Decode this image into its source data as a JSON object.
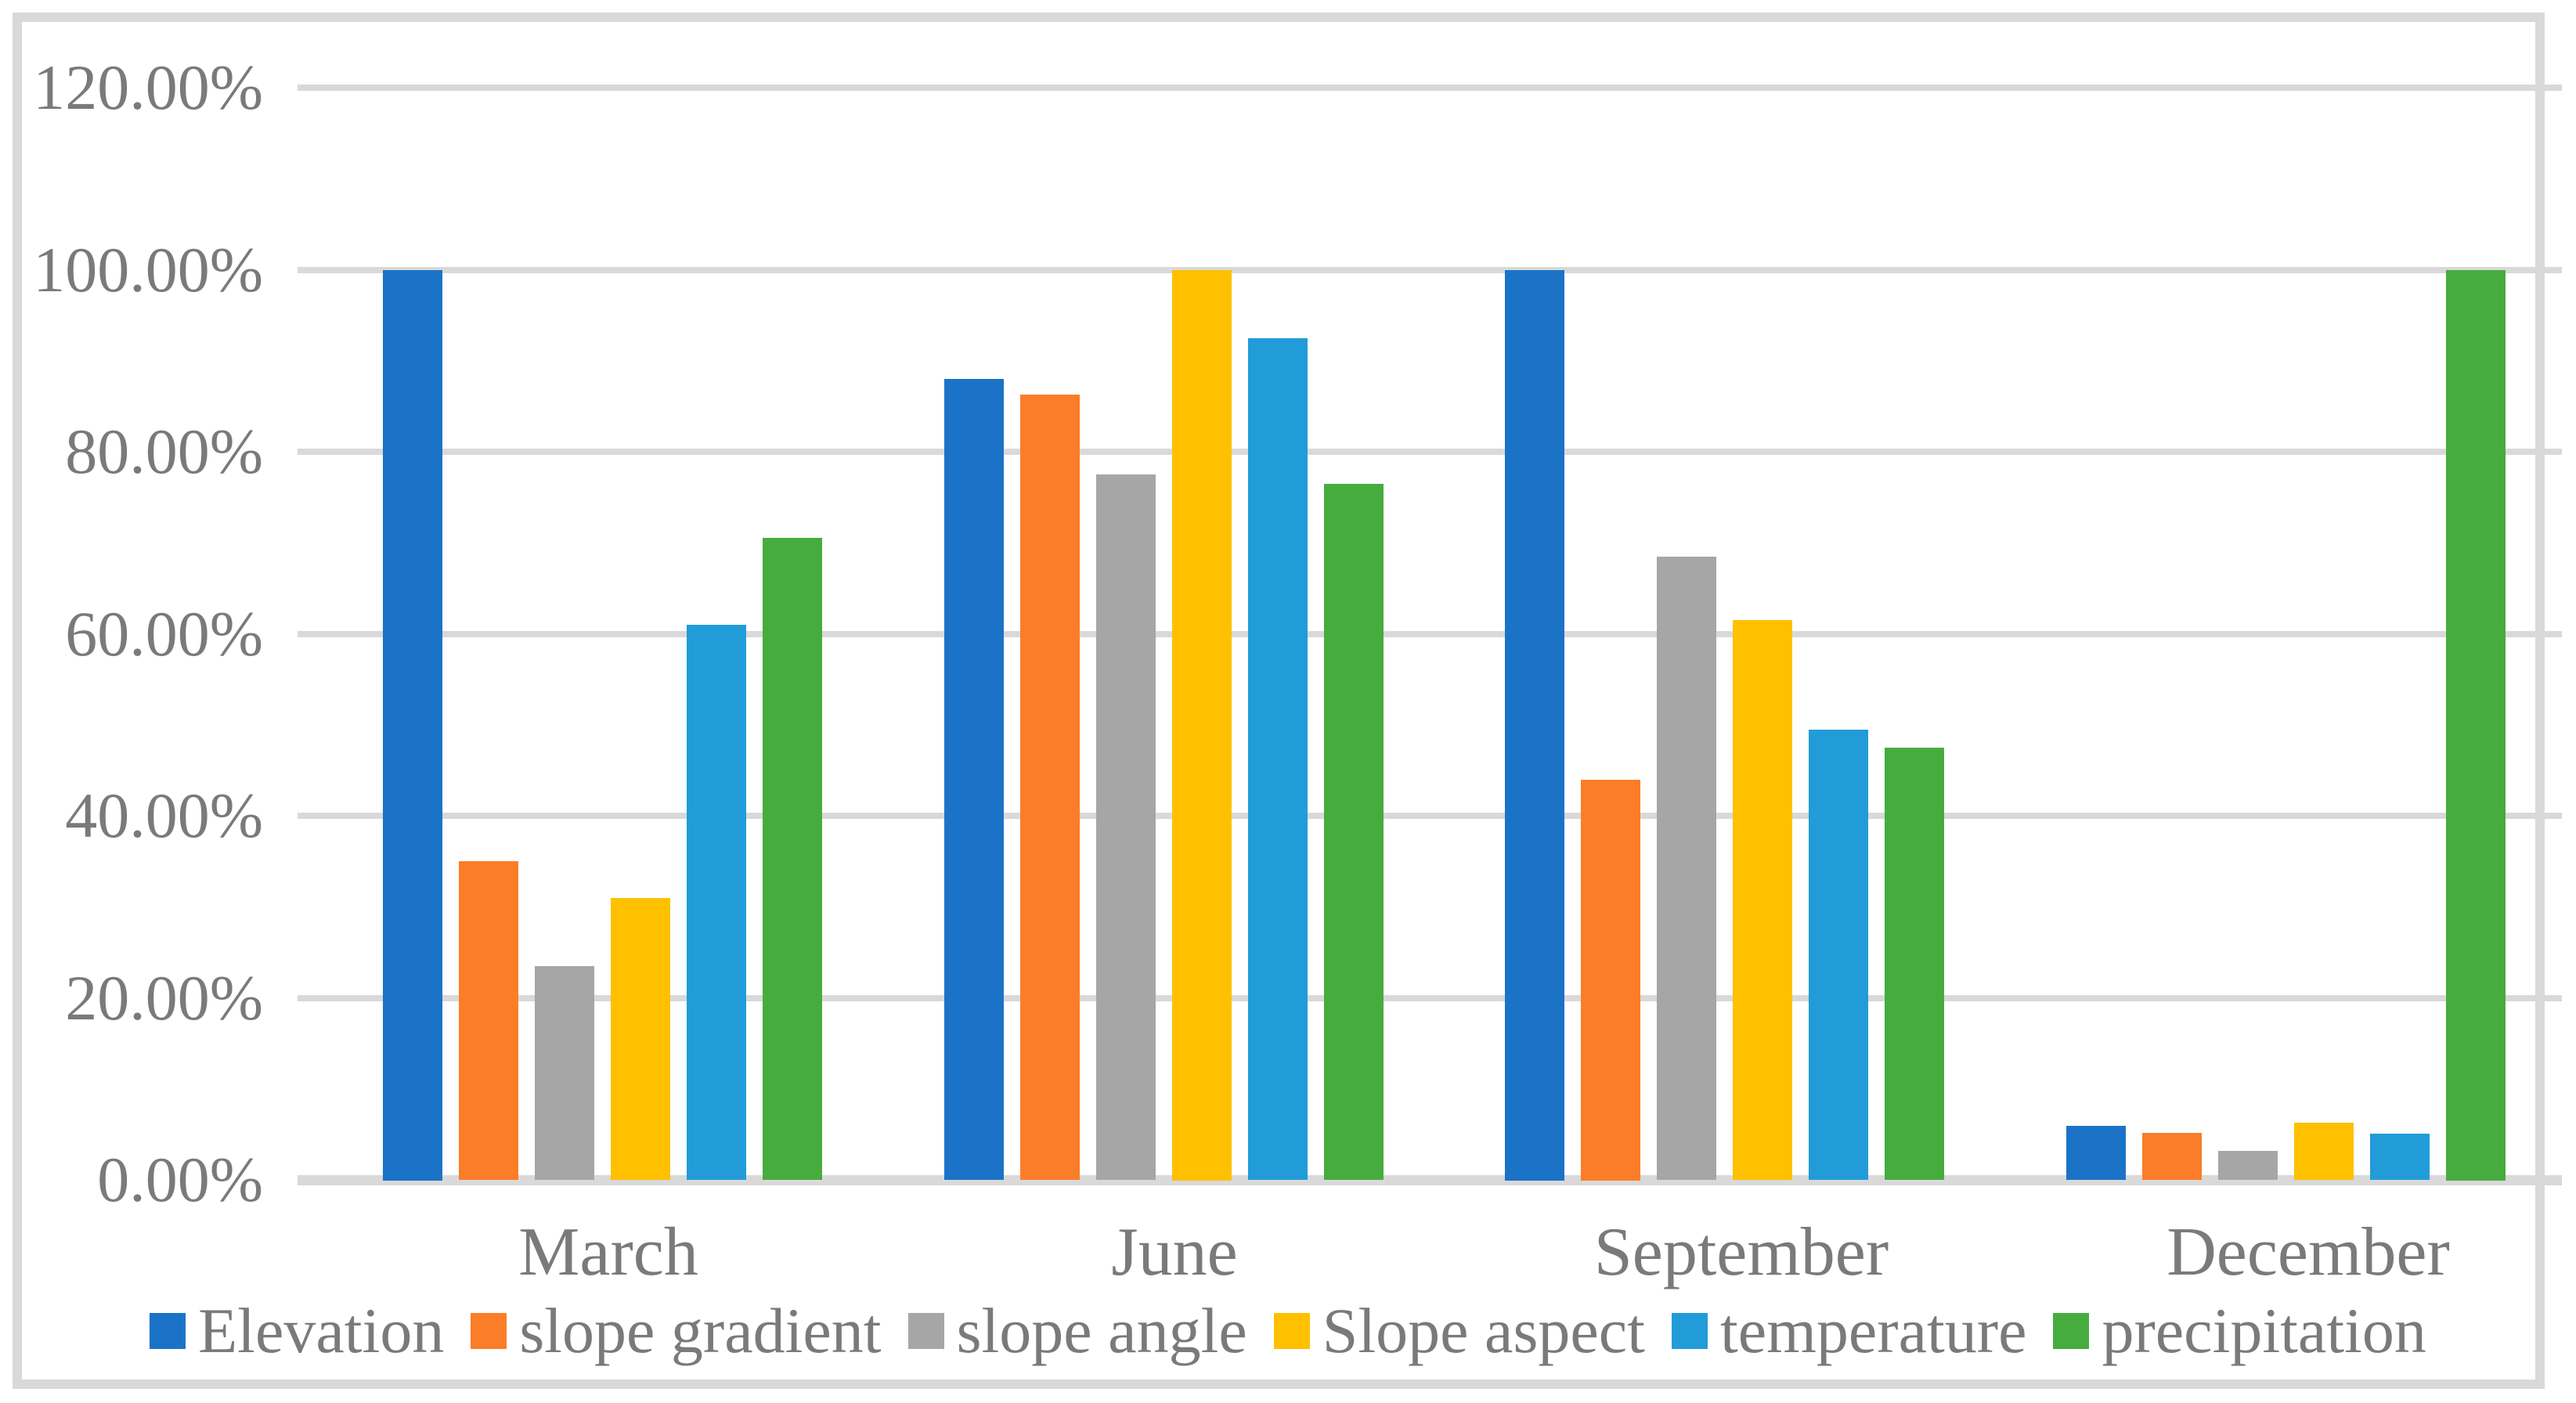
{
  "chart_data": {
    "type": "bar",
    "title": "",
    "xlabel": "",
    "ylabel": "",
    "categories": [
      "March",
      "June",
      "September",
      "December"
    ],
    "series": [
      {
        "name": "Elevation",
        "color": "#1B73C8",
        "values": [
          100,
          88,
          100,
          5.9
        ]
      },
      {
        "name": "slope gradient",
        "color": "#FB7D28",
        "values": [
          35,
          86.3,
          44,
          5.2
        ]
      },
      {
        "name": "slope angle",
        "color": "#A6A6A6",
        "values": [
          23.5,
          77.5,
          68.5,
          3.2
        ]
      },
      {
        "name": "Slope aspect",
        "color": "#FFC000",
        "values": [
          31,
          100,
          61.5,
          6.3
        ]
      },
      {
        "name": "temperature",
        "color": "#219CD8",
        "values": [
          61,
          92.5,
          49.5,
          5.1
        ]
      },
      {
        "name": "precipitation",
        "color": "#47AC3E",
        "values": [
          70.5,
          76.5,
          47.5,
          100
        ]
      }
    ],
    "ylim": [
      0,
      120
    ],
    "ytick_step": 20,
    "ytick_labels": [
      "0.00%",
      "20.00%",
      "40.00%",
      "60.00%",
      "80.00%",
      "100.00%",
      "120.00%"
    ],
    "grid": true,
    "legend_position": "bottom"
  },
  "style": {
    "background": "#FFFFFF",
    "frame_color": "#D9D9D9",
    "grid_color": "#D9D9D9",
    "axis_line_color": "#D9D9D9",
    "text_color": "#7A7A7A"
  }
}
